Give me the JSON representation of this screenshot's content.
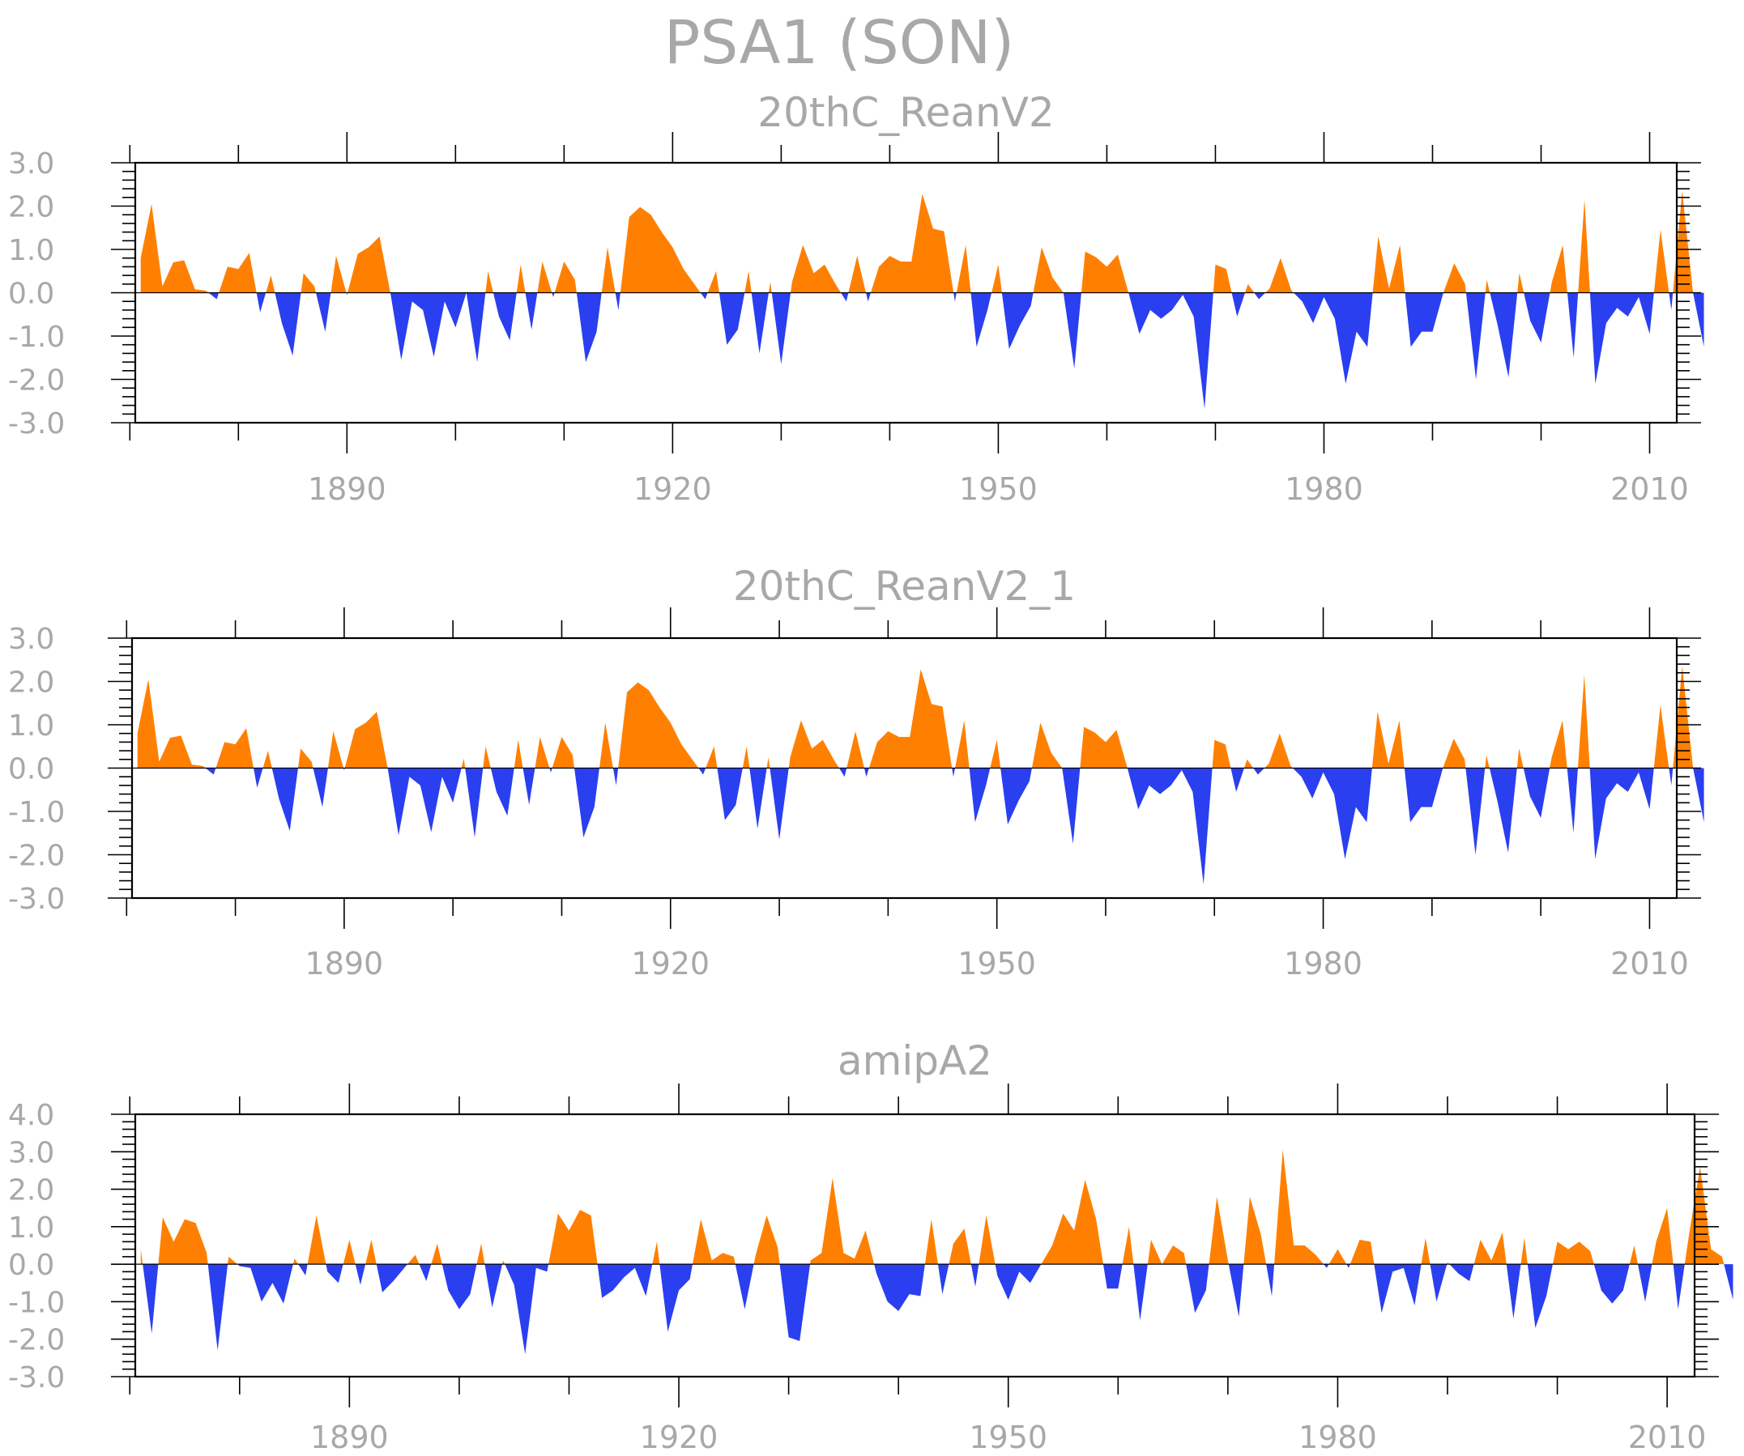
{
  "title": "PSA1 (SON)",
  "colors": {
    "positive": "#ff8000",
    "negative": "#2a3ff0",
    "text": "#a8a8a8",
    "axis": "#000000"
  },
  "chart_data": [
    {
      "type": "area",
      "title": "20thC_ReanV2",
      "ylim": [
        -3.0,
        3.0
      ],
      "yticks": [
        3.0,
        2.0,
        1.0,
        0.0,
        -1.0,
        -2.0,
        -3.0
      ],
      "ytick_labels": [
        "3.0",
        "2.0",
        "1.0",
        "0.0",
        "-1.0",
        "-2.0",
        "-3.0"
      ],
      "xlim": [
        1870.5,
        2012.5
      ],
      "xticks": [
        1890,
        1920,
        1950,
        1980,
        2010
      ],
      "xtick_labels": [
        "1890",
        "1920",
        "1950",
        "1980",
        "2010"
      ],
      "x_start": 1871,
      "x_step": 1,
      "fill_positive": "#ff8000",
      "fill_negative": "#2a3ff0",
      "values": [
        0.8,
        2.05,
        0.15,
        0.7,
        0.75,
        0.08,
        0.05,
        -0.15,
        0.6,
        0.55,
        0.92,
        -0.45,
        0.4,
        -0.7,
        -1.45,
        0.45,
        0.15,
        -0.9,
        0.85,
        -0.05,
        0.9,
        1.05,
        1.3,
        0.0,
        -1.55,
        -0.2,
        -0.4,
        -1.48,
        -0.2,
        -0.8,
        0.0,
        -1.6,
        0.5,
        -0.55,
        -1.1,
        0.65,
        -0.85,
        0.72,
        -0.1,
        0.72,
        0.3,
        -1.6,
        -0.9,
        1.05,
        -0.4,
        1.75,
        1.98,
        1.8,
        1.4,
        1.05,
        0.55,
        0.2,
        -0.15,
        0.5,
        -1.2,
        -0.85,
        0.5,
        -1.4,
        0.25,
        -1.65,
        0.25,
        1.1,
        0.45,
        0.65,
        0.2,
        -0.2,
        0.85,
        -0.2,
        0.6,
        0.85,
        0.72,
        0.72,
        2.28,
        1.48,
        1.42,
        -0.2,
        1.1,
        -1.25,
        -0.4,
        0.65,
        -1.3,
        -0.75,
        -0.3,
        1.05,
        0.35,
        0.0,
        -1.75,
        0.95,
        0.82,
        0.6,
        0.88,
        0.0,
        -0.95,
        -0.4,
        -0.6,
        -0.4,
        -0.05,
        -0.55,
        -2.68,
        0.65,
        0.55,
        -0.55,
        0.2,
        -0.15,
        0.1,
        0.8,
        0.05,
        -0.2,
        -0.7,
        -0.1,
        -0.6,
        -2.1,
        -0.9,
        -1.25,
        1.3,
        0.1,
        1.1,
        -1.25,
        -0.9,
        -0.9,
        0.0,
        0.68,
        0.2,
        -2.0,
        0.3,
        -0.75,
        -1.95,
        0.45,
        -0.65,
        -1.15,
        0.25,
        1.1,
        -1.5,
        2.15,
        -2.1,
        -0.7,
        -0.35,
        -0.55,
        -0.1,
        -0.95,
        1.45,
        -0.4,
        2.35,
        0.0,
        -1.25
      ]
    },
    {
      "type": "area",
      "title": "20thC_ReanV2_1",
      "ylim": [
        -3.0,
        3.0
      ],
      "yticks": [
        3.0,
        2.0,
        1.0,
        0.0,
        -1.0,
        -2.0,
        -3.0
      ],
      "ytick_labels": [
        "3.0",
        "2.0",
        "1.0",
        "0.0",
        "-1.0",
        "-2.0",
        "-3.0"
      ],
      "xlim": [
        1870.5,
        2012.5
      ],
      "xticks": [
        1890,
        1920,
        1950,
        1980,
        2010
      ],
      "xtick_labels": [
        "1890",
        "1920",
        "1950",
        "1980",
        "2010"
      ],
      "x_start": 1871,
      "x_step": 1,
      "fill_positive": "#ff8000",
      "fill_negative": "#2a3ff0",
      "values": [
        0.8,
        2.05,
        0.15,
        0.7,
        0.75,
        0.08,
        0.05,
        -0.15,
        0.6,
        0.55,
        0.92,
        -0.45,
        0.4,
        -0.7,
        -1.45,
        0.45,
        0.15,
        -0.9,
        0.85,
        -0.05,
        0.9,
        1.05,
        1.3,
        0.0,
        -1.55,
        -0.2,
        -0.4,
        -1.48,
        -0.2,
        -0.8,
        0.22,
        -1.6,
        0.5,
        -0.55,
        -1.1,
        0.65,
        -0.85,
        0.72,
        -0.1,
        0.72,
        0.3,
        -1.6,
        -0.9,
        1.05,
        -0.4,
        1.75,
        1.98,
        1.8,
        1.4,
        1.05,
        0.55,
        0.2,
        -0.15,
        0.5,
        -1.2,
        -0.85,
        0.5,
        -1.4,
        0.25,
        -1.65,
        0.25,
        1.1,
        0.45,
        0.65,
        0.2,
        -0.2,
        0.85,
        -0.2,
        0.6,
        0.85,
        0.72,
        0.72,
        2.28,
        1.48,
        1.42,
        -0.2,
        1.1,
        -1.25,
        -0.4,
        0.65,
        -1.3,
        -0.75,
        -0.3,
        1.05,
        0.35,
        0.0,
        -1.75,
        0.95,
        0.82,
        0.6,
        0.88,
        0.0,
        -0.95,
        -0.4,
        -0.6,
        -0.4,
        -0.05,
        -0.55,
        -2.68,
        0.65,
        0.55,
        -0.55,
        0.2,
        -0.15,
        0.1,
        0.8,
        0.05,
        -0.2,
        -0.7,
        -0.1,
        -0.6,
        -2.1,
        -0.9,
        -1.25,
        1.3,
        0.1,
        1.1,
        -1.25,
        -0.9,
        -0.9,
        0.0,
        0.68,
        0.2,
        -2.0,
        0.3,
        -0.75,
        -1.95,
        0.45,
        -0.65,
        -1.15,
        0.25,
        1.1,
        -1.5,
        2.15,
        -2.1,
        -0.7,
        -0.35,
        -0.55,
        -0.1,
        -0.95,
        1.45,
        -0.4,
        2.35,
        0.0,
        -1.25
      ]
    },
    {
      "type": "area",
      "title": "amipA2",
      "ylim": [
        -3.0,
        4.0
      ],
      "yticks": [
        4.0,
        3.0,
        2.0,
        1.0,
        0.0,
        -1.0,
        -2.0,
        -3.0
      ],
      "ytick_labels": [
        "4.0",
        "3.0",
        "2.0",
        "1.0",
        "0.0",
        "-1.0",
        "-2.0",
        "-3.0"
      ],
      "xlim": [
        1870.5,
        2012.5
      ],
      "xticks": [
        1890,
        1920,
        1950,
        1980,
        2010
      ],
      "xtick_labels": [
        "1890",
        "1920",
        "1950",
        "1980",
        "2010"
      ],
      "x_start": 1871,
      "x_step": 1,
      "fill_positive": "#ff8000",
      "fill_negative": "#2a3ff0",
      "values": [
        0.4,
        -1.85,
        1.25,
        0.6,
        1.2,
        1.1,
        0.3,
        -2.3,
        0.2,
        -0.05,
        -0.1,
        -1.0,
        -0.5,
        -1.05,
        0.15,
        -0.3,
        1.3,
        -0.2,
        -0.5,
        0.65,
        -0.55,
        0.65,
        -0.75,
        -0.45,
        -0.1,
        0.25,
        -0.45,
        0.55,
        -0.7,
        -1.2,
        -0.8,
        0.55,
        -1.15,
        0.1,
        -0.55,
        -2.4,
        -0.1,
        -0.2,
        1.35,
        0.9,
        1.45,
        1.3,
        -0.9,
        -0.7,
        -0.35,
        -0.1,
        -0.85,
        0.6,
        -1.8,
        -0.7,
        -0.4,
        1.2,
        0.1,
        0.3,
        0.2,
        -1.2,
        0.25,
        1.3,
        0.45,
        -1.95,
        -2.05,
        0.1,
        0.3,
        2.3,
        0.3,
        0.15,
        0.9,
        -0.25,
        -1.0,
        -1.25,
        -0.8,
        -0.85,
        1.2,
        -0.8,
        0.55,
        0.95,
        -0.6,
        1.3,
        -0.3,
        -0.95,
        -0.2,
        -0.5,
        0.0,
        0.5,
        1.35,
        0.9,
        2.25,
        1.2,
        -0.65,
        -0.65,
        1.0,
        -1.5,
        0.65,
        0.0,
        0.5,
        0.3,
        -1.3,
        -0.7,
        1.8,
        0.1,
        -1.4,
        1.8,
        0.8,
        -0.85,
        3.05,
        0.5,
        0.5,
        0.25,
        -0.1,
        0.4,
        -0.1,
        0.65,
        0.6,
        -1.3,
        -0.2,
        -0.1,
        -1.1,
        0.7,
        -1.0,
        0.05,
        -0.25,
        -0.45,
        0.65,
        0.1,
        0.85,
        -1.45,
        0.7,
        -1.7,
        -0.85,
        0.6,
        0.4,
        0.6,
        0.35,
        -0.7,
        -1.05,
        -0.7,
        0.5,
        -1.0,
        0.6,
        1.5,
        -1.2,
        0.8,
        2.6,
        0.4,
        0.2,
        -0.95
      ]
    }
  ]
}
